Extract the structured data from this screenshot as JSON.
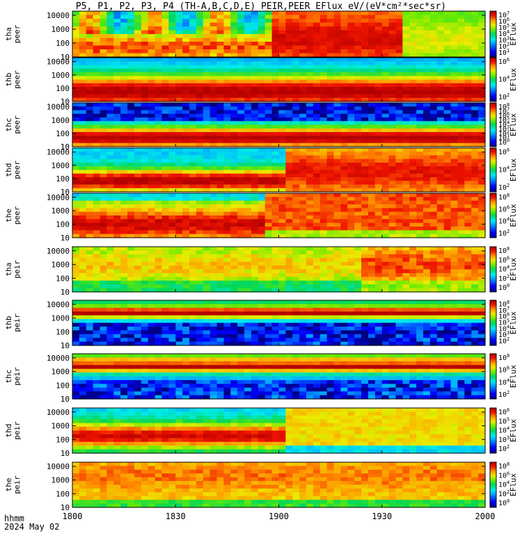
{
  "title": "P5, P1, P2, P3, P4 (TH-A,B,C,D,E) PEIR,PEER EFlux eV/(eV*cm²*sec*sr)",
  "footer": {
    "line1": "hhmm",
    "line2": "2024 May 02"
  },
  "x_axis": {
    "ticks": [
      "1800",
      "1830",
      "1900",
      "1930",
      "2000"
    ]
  },
  "colorbar_label": "EFlux",
  "y_ticks_energy": [
    "10000",
    "1000",
    "100",
    "10"
  ],
  "chart_data": {
    "type": "heatmap",
    "x_range_hhmm": [
      "1800",
      "2000"
    ],
    "x_ticks": [
      "1800",
      "1830",
      "1900",
      "1930",
      "2000"
    ],
    "y_scale": "log",
    "panels": [
      {
        "ylabel": [
          "tha",
          "peer"
        ],
        "y_ticks": [
          "10000",
          "1000",
          "100",
          "10"
        ],
        "colorbar_ticks": [
          "10^7",
          "10^6",
          "10^5",
          "10^4",
          "10^3",
          "10^2",
          "10^1"
        ],
        "colorbar_label": "EFlux",
        "pattern": "a_peer"
      },
      {
        "ylabel": [
          "thb",
          "peer"
        ],
        "y_ticks": [
          "10000",
          "1000",
          "100",
          "10"
        ],
        "colorbar_ticks": [
          "10^6",
          "10^4",
          "10^2"
        ],
        "colorbar_label": "EFlux",
        "pattern": "b_peer"
      },
      {
        "ylabel": [
          "thc",
          "peer"
        ],
        "y_ticks": [
          "10000",
          "1000",
          "100",
          "10"
        ],
        "colorbar_ticks": [
          "10^8",
          "10^7",
          "10^6",
          "10^5",
          "10^4",
          "10^3",
          "10^2",
          "10^1",
          "10^0"
        ],
        "colorbar_label": "EFlux",
        "pattern": "c_peer"
      },
      {
        "ylabel": [
          "thd",
          "peer"
        ],
        "y_ticks": [
          "10000",
          "1000",
          "100",
          "10"
        ],
        "colorbar_ticks": [
          "10^6",
          "10^4",
          "10^2"
        ],
        "colorbar_label": "EFlux",
        "pattern": "d_peer"
      },
      {
        "ylabel": [
          "the",
          "peer"
        ],
        "y_ticks": [
          "10000",
          "1000",
          "100",
          "10"
        ],
        "colorbar_ticks": [
          "10^8",
          "10^6",
          "10^4",
          "10^2"
        ],
        "colorbar_label": "EFlux",
        "pattern": "e_peer"
      },
      {
        "ylabel": [
          "tha",
          "peir"
        ],
        "y_ticks": [
          "10000",
          "1000",
          "100",
          "10"
        ],
        "colorbar_ticks": [
          "10^8",
          "10^6",
          "10^4",
          "10^2",
          "10^0"
        ],
        "colorbar_label": "EFlux",
        "pattern": "a_peir"
      },
      {
        "ylabel": [
          "thb",
          "peir"
        ],
        "y_ticks": [
          "10000",
          "1000",
          "100",
          "10"
        ],
        "colorbar_ticks": [
          "10^8",
          "10^7",
          "10^6",
          "10^5",
          "10^4",
          "10^3",
          "10^2"
        ],
        "colorbar_label": "EFlux",
        "pattern": "b_peir"
      },
      {
        "ylabel": [
          "thc",
          "peir"
        ],
        "y_ticks": [
          "10000",
          "1000",
          "100",
          "10"
        ],
        "colorbar_ticks": [
          "10^8",
          "10^6",
          "10^4",
          "10^2"
        ],
        "colorbar_label": "EFlux",
        "pattern": "c_peir"
      },
      {
        "ylabel": [
          "thd",
          "peir"
        ],
        "y_ticks": [
          "10000",
          "1000",
          "100",
          "10"
        ],
        "colorbar_ticks": [
          "10^6",
          "10^5",
          "10^4",
          "10^3",
          "10^2"
        ],
        "colorbar_label": "EFlux",
        "pattern": "d_peir"
      },
      {
        "ylabel": [
          "the",
          "peir"
        ],
        "y_ticks": [
          "10000",
          "1000",
          "100",
          "10"
        ],
        "colorbar_ticks": [
          "10^8",
          "10^6",
          "10^4",
          "10^2",
          "10^0"
        ],
        "colorbar_label": "EFlux",
        "pattern": "e_peir"
      }
    ]
  }
}
